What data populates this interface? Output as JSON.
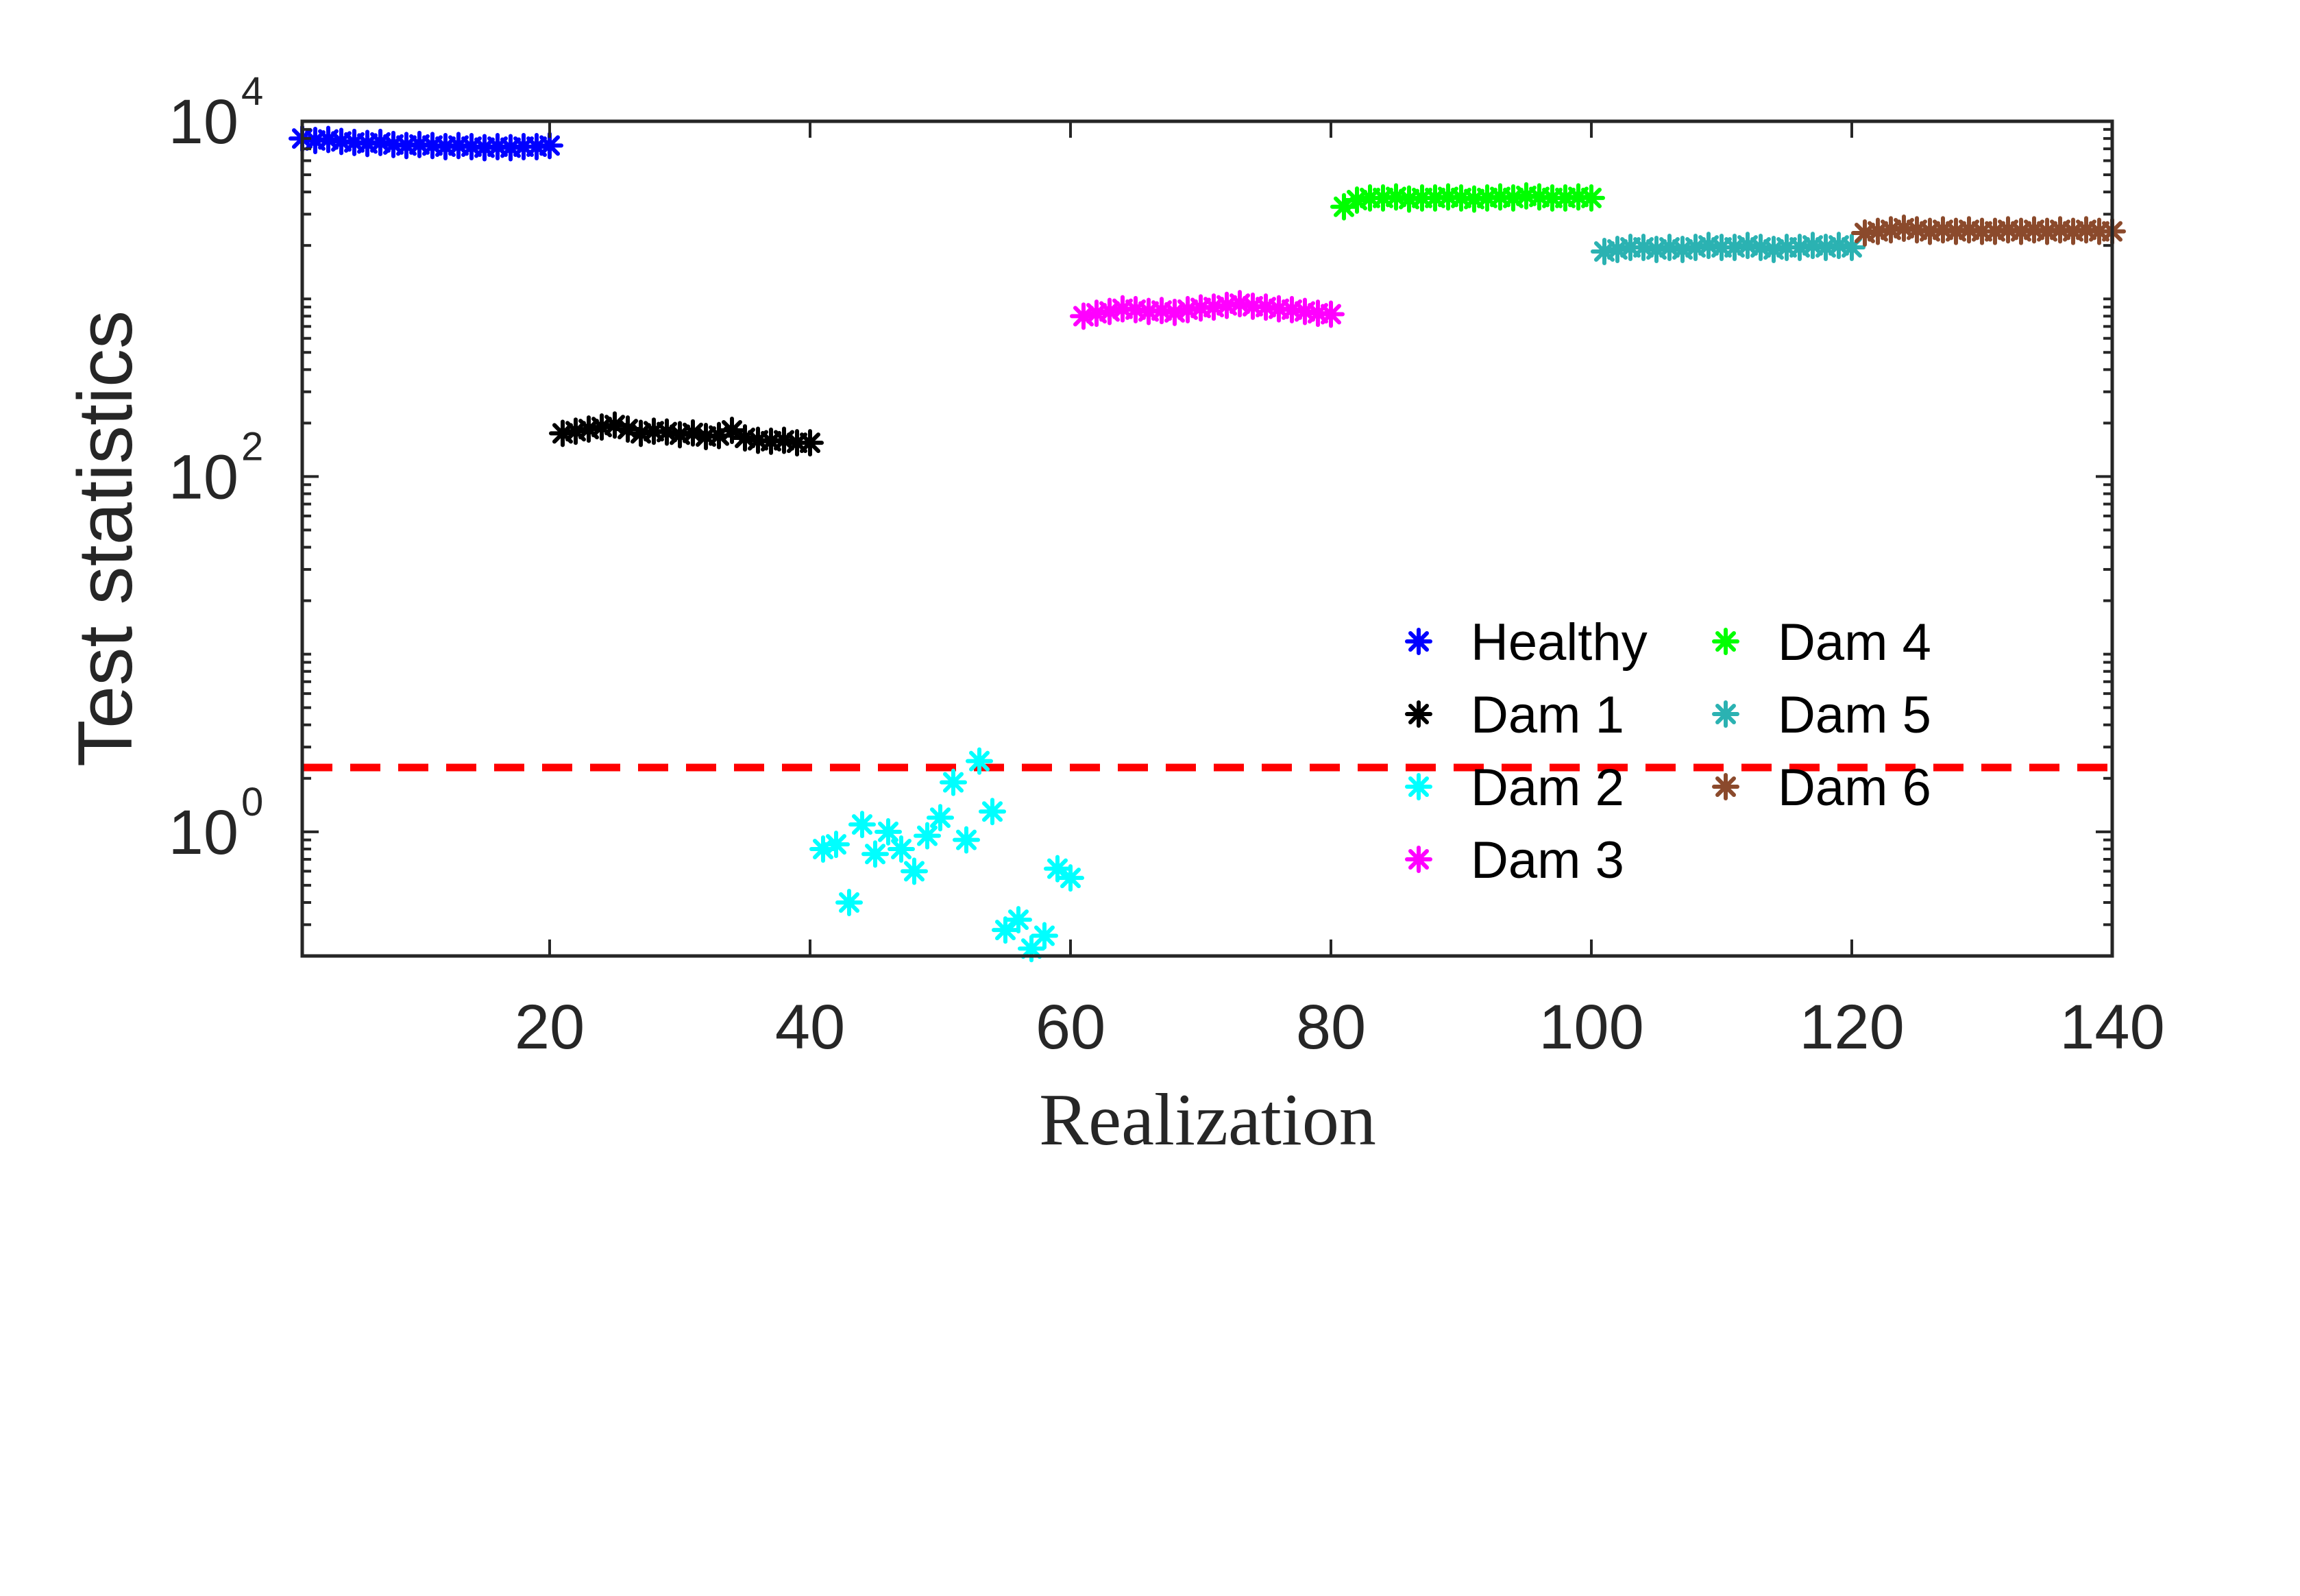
{
  "chart_data": {
    "type": "scatter",
    "title": "",
    "xlabel": "Realization",
    "ylabel": "Test statistics",
    "xscale": "linear",
    "yscale": "log",
    "xlim": [
      1,
      140
    ],
    "ylim": [
      0.2,
      10000
    ],
    "xticks": [
      20,
      40,
      60,
      80,
      100,
      120,
      140
    ],
    "yticks": [
      {
        "value": 1,
        "base": "10",
        "exp": "0"
      },
      {
        "value": 100,
        "base": "10",
        "exp": "2"
      },
      {
        "value": 10000,
        "base": "10",
        "exp": "4"
      }
    ],
    "marker": "asterisk",
    "legend_location": "lower-right",
    "legend_columns": 2,
    "threshold": {
      "value": 2.3,
      "color": "#ff0000",
      "style": "dashed"
    },
    "series": [
      {
        "name": "Healthy",
        "color": "#0000ff",
        "x_start": 1,
        "values": [
          8000,
          7800,
          7900,
          7700,
          7600,
          7500,
          7600,
          7400,
          7300,
          7400,
          7300,
          7200,
          7300,
          7200,
          7100,
          7200,
          7100,
          7200,
          7200,
          7300
        ]
      },
      {
        "name": "Dam 1",
        "color": "#000000",
        "x_start": 21,
        "values": [
          175,
          180,
          185,
          190,
          195,
          185,
          175,
          180,
          178,
          172,
          176,
          168,
          170,
          182,
          165,
          160,
          158,
          160,
          155,
          155
        ]
      },
      {
        "name": "Dam 2",
        "color": "#00ffff",
        "x_start": 41,
        "values": [
          0.8,
          0.85,
          0.4,
          1.1,
          0.75,
          1.0,
          0.8,
          0.6,
          0.95,
          1.2,
          1.9,
          0.9,
          2.5,
          1.3,
          0.28,
          0.32,
          0.22,
          0.26,
          0.62,
          0.55
        ]
      },
      {
        "name": "Dam 3",
        "color": "#ff00ff",
        "x_start": 61,
        "values": [
          800,
          830,
          850,
          880,
          870,
          850,
          860,
          840,
          870,
          890,
          900,
          920,
          940,
          910,
          900,
          880,
          870,
          850,
          830,
          820
        ]
      },
      {
        "name": "Dam 4",
        "color": "#00ff00",
        "x_start": 81,
        "values": [
          3300,
          3600,
          3700,
          3700,
          3750,
          3650,
          3700,
          3700,
          3750,
          3700,
          3650,
          3700,
          3750,
          3700,
          3800,
          3750,
          3700,
          3700,
          3750,
          3700
        ]
      },
      {
        "name": "Dam 5",
        "color": "#2bb2b2",
        "x_start": 101,
        "values": [
          1850,
          1900,
          1950,
          1950,
          1900,
          1950,
          1900,
          1950,
          2000,
          1950,
          1950,
          2000,
          1950,
          1900,
          1950,
          1950,
          2000,
          1950,
          2000,
          1950
        ]
      },
      {
        "name": "Dam 6",
        "color": "#8b4a2c",
        "x_start": 121,
        "values": [
          2350,
          2400,
          2450,
          2500,
          2450,
          2400,
          2450,
          2400,
          2450,
          2400,
          2400,
          2450,
          2400,
          2450,
          2400,
          2450,
          2400,
          2450,
          2400,
          2400
        ]
      }
    ]
  }
}
